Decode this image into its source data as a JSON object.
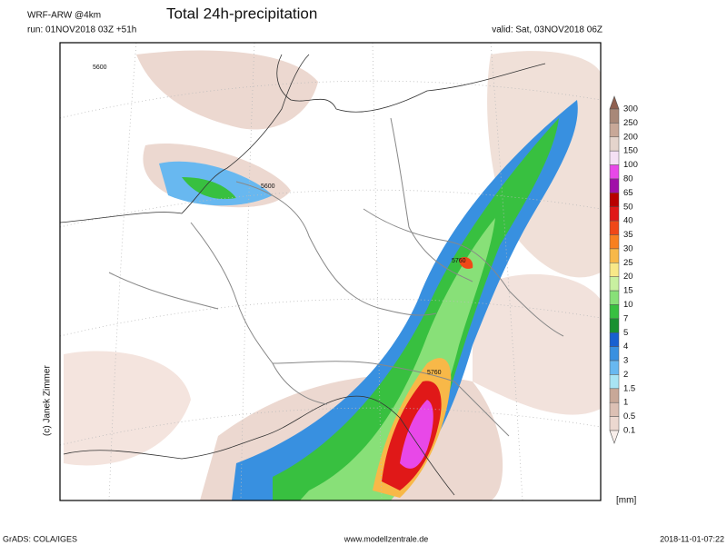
{
  "header": {
    "model": "WRF-ARW @4km",
    "title": "Total 24h-precipitation",
    "run": "run: 01NOV2018 03Z +51h",
    "valid": "valid: Sat, 03NOV2018 06Z"
  },
  "map": {
    "contour_labels": [
      "5600",
      "5600",
      "5760",
      "5760"
    ],
    "credit": "(c) Janek Zimmer"
  },
  "colorbar": {
    "labels": [
      "300",
      "250",
      "200",
      "150",
      "100",
      "80",
      "65",
      "50",
      "40",
      "35",
      "30",
      "25",
      "20",
      "15",
      "10",
      "7",
      "5",
      "4",
      "3",
      "2",
      "1.5",
      "1",
      "0.5",
      "0.1"
    ],
    "colors": [
      "#a88878",
      "#c8a898",
      "#e4d4cc",
      "#f4e0f4",
      "#e848e8",
      "#a010a8",
      "#b80000",
      "#e01818",
      "#f04818",
      "#f88020",
      "#f8b848",
      "#f8e888",
      "#c8f0a0",
      "#88e078",
      "#38c040",
      "#189030",
      "#1860d0",
      "#3890e0",
      "#68b8f0",
      "#a8e4f4",
      "#c8a898",
      "#dcc0b4",
      "#ecd8d0",
      "#f8eeea"
    ],
    "unit": "[mm]"
  },
  "footer": {
    "left": "GrADS: COLA/IGES",
    "center": "www.modellzentrale.de",
    "right": "2018-11-01-07:22"
  }
}
